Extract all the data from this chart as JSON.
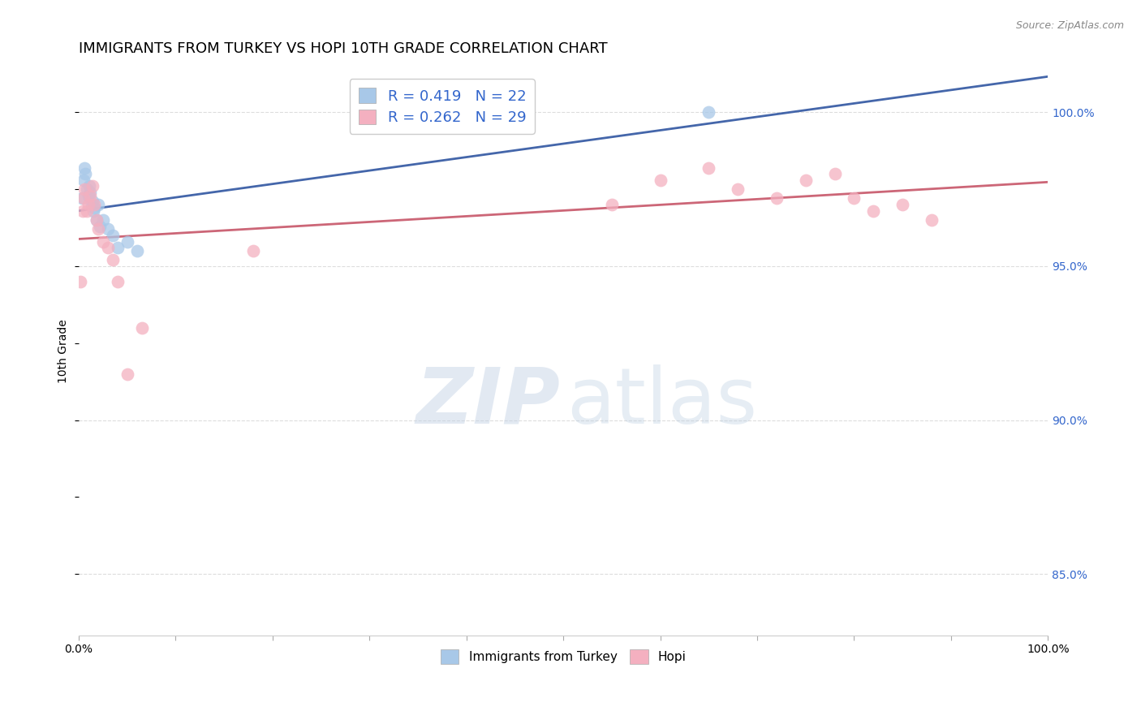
{
  "title": "IMMIGRANTS FROM TURKEY VS HOPI 10TH GRADE CORRELATION CHART",
  "source": "Source: ZipAtlas.com",
  "ylabel": "10th Grade",
  "xlim": [
    0.0,
    100.0
  ],
  "ylim": [
    83.0,
    101.5
  ],
  "y_ticks_right": [
    85.0,
    90.0,
    95.0,
    100.0
  ],
  "y_tick_labels_right": [
    "85.0%",
    "90.0%",
    "95.0%",
    "100.0%"
  ],
  "blue_R": 0.419,
  "blue_N": 22,
  "pink_R": 0.262,
  "pink_N": 29,
  "blue_label": "Immigrants from Turkey",
  "pink_label": "Hopi",
  "blue_color": "#A8C8E8",
  "pink_color": "#F4B0C0",
  "blue_line_color": "#4466AA",
  "pink_line_color": "#CC6677",
  "grid_color": "#DDDDDD",
  "background_color": "#FFFFFF",
  "blue_x": [
    0.3,
    0.5,
    0.6,
    0.7,
    0.8,
    1.0,
    1.1,
    1.2,
    1.3,
    1.4,
    1.5,
    1.6,
    1.8,
    2.0,
    2.2,
    2.5,
    3.0,
    3.5,
    4.0,
    5.0,
    6.0,
    65.0
  ],
  "blue_y": [
    97.2,
    97.8,
    98.2,
    98.0,
    97.5,
    97.3,
    97.6,
    97.4,
    97.0,
    97.1,
    96.8,
    96.9,
    96.5,
    97.0,
    96.3,
    96.5,
    96.2,
    96.0,
    95.6,
    95.8,
    95.5,
    100.0
  ],
  "pink_x": [
    0.2,
    0.4,
    0.5,
    0.6,
    0.8,
    1.0,
    1.2,
    1.4,
    1.6,
    1.8,
    2.0,
    2.5,
    3.0,
    3.5,
    4.0,
    5.0,
    6.5,
    18.0,
    55.0,
    60.0,
    65.0,
    68.0,
    72.0,
    75.0,
    78.0,
    80.0,
    82.0,
    85.0,
    88.0
  ],
  "pink_y": [
    94.5,
    96.8,
    97.2,
    97.5,
    96.8,
    97.0,
    97.3,
    97.6,
    97.0,
    96.5,
    96.2,
    95.8,
    95.6,
    95.2,
    94.5,
    91.5,
    93.0,
    95.5,
    97.0,
    97.8,
    98.2,
    97.5,
    97.2,
    97.8,
    98.0,
    97.2,
    96.8,
    97.0,
    96.5
  ]
}
